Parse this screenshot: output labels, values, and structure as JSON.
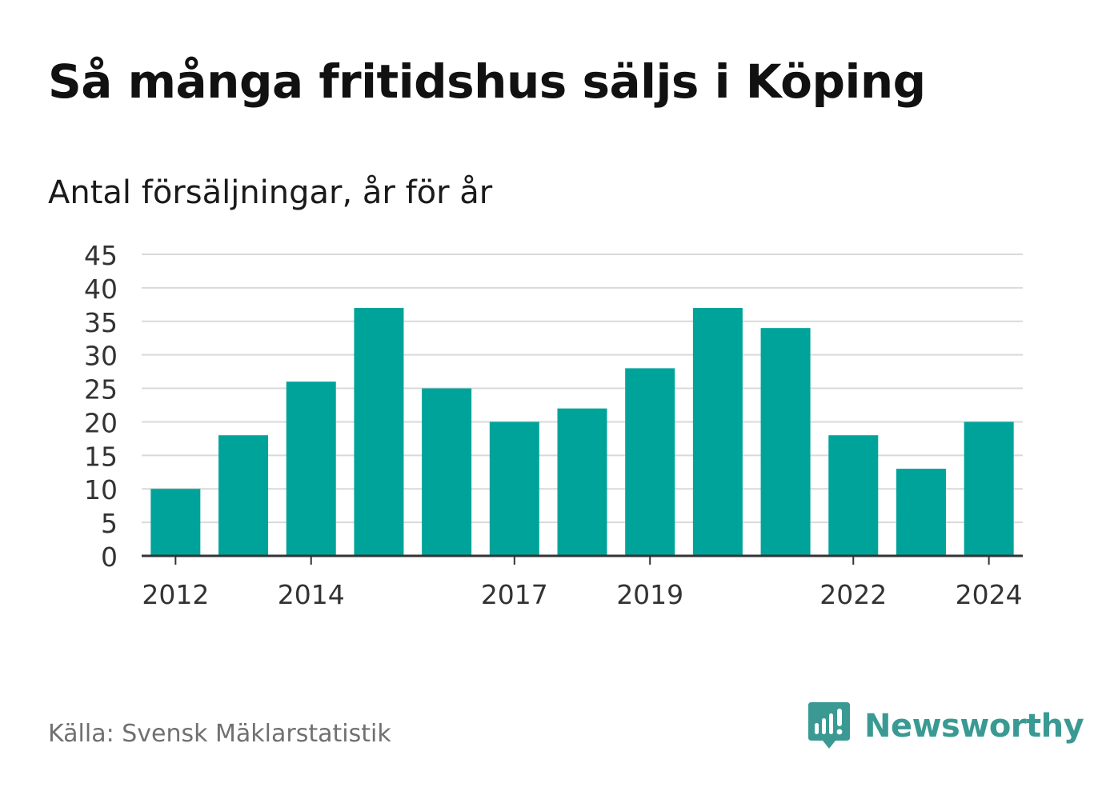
{
  "colors": {
    "bar": "#00a39a",
    "grid": "#d9d9d9",
    "axis": "#333333",
    "brand": "#3a9a93"
  },
  "chart_data": {
    "type": "bar",
    "title": "Så många fritidshus säljs i Köping",
    "subtitle": "Antal försäljningar, år för år",
    "x": [
      2012,
      2013,
      2014,
      2015,
      2016,
      2017,
      2018,
      2019,
      2020,
      2021,
      2022,
      2023,
      2024
    ],
    "values": [
      10,
      18,
      26,
      37,
      25,
      20,
      22,
      28,
      37,
      34,
      18,
      13,
      20
    ],
    "x_tick_labels": [
      "2012",
      "2014",
      "2017",
      "2019",
      "2022",
      "2024"
    ],
    "y_ticks": [
      0,
      5,
      10,
      15,
      20,
      25,
      30,
      35,
      40,
      45
    ],
    "ylim": [
      0,
      45
    ],
    "grid": true,
    "legend": "none"
  },
  "footer": {
    "source": "Källa: Svensk Mäklarstatistik",
    "brand": "Newsworthy",
    "brand_icon": "newsworthy-logo-icon"
  }
}
